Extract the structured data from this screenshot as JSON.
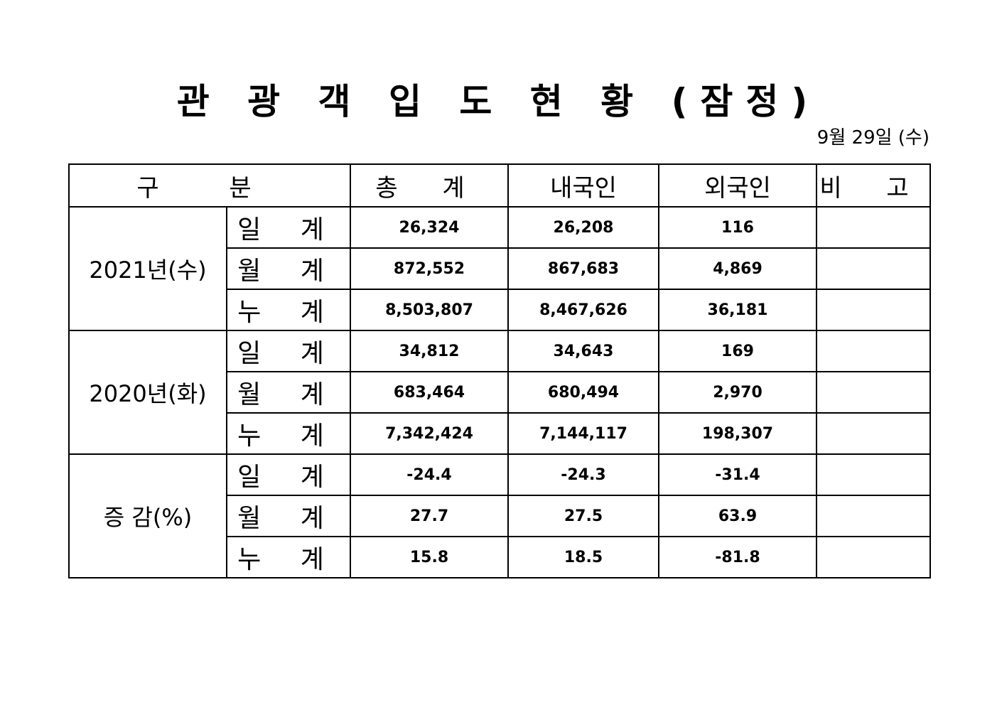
{
  "title": "관 광 객 입 도 현 황 (잠정)",
  "date": "9월 29일 (수)",
  "table": {
    "headers": {
      "category": "구 분",
      "total": "총 계",
      "domestic": "내국인",
      "foreign": "외국인",
      "note": "비 고"
    },
    "groups": [
      {
        "label": "2021년(수)",
        "rows": [
          {
            "label": "일 계",
            "total": "26,324",
            "domestic": "26,208",
            "foreign": "116",
            "note": ""
          },
          {
            "label": "월 계",
            "total": "872,552",
            "domestic": "867,683",
            "foreign": "4,869",
            "note": ""
          },
          {
            "label": "누 계",
            "total": "8,503,807",
            "domestic": "8,467,626",
            "foreign": "36,181",
            "note": ""
          }
        ]
      },
      {
        "label": "2020년(화)",
        "rows": [
          {
            "label": "일 계",
            "total": "34,812",
            "domestic": "34,643",
            "foreign": "169",
            "note": ""
          },
          {
            "label": "월 계",
            "total": "683,464",
            "domestic": "680,494",
            "foreign": "2,970",
            "note": ""
          },
          {
            "label": "누 계",
            "total": "7,342,424",
            "domestic": "7,144,117",
            "foreign": "198,307",
            "note": ""
          }
        ]
      },
      {
        "label": "증 감(%)",
        "rows": [
          {
            "label": "일 계",
            "total": "-24.4",
            "domestic": "-24.3",
            "foreign": "-31.4",
            "note": ""
          },
          {
            "label": "월 계",
            "total": "27.7",
            "domestic": "27.5",
            "foreign": "63.9",
            "note": ""
          },
          {
            "label": "누 계",
            "total": "15.8",
            "domestic": "18.5",
            "foreign": "-81.8",
            "note": ""
          }
        ]
      }
    ]
  }
}
